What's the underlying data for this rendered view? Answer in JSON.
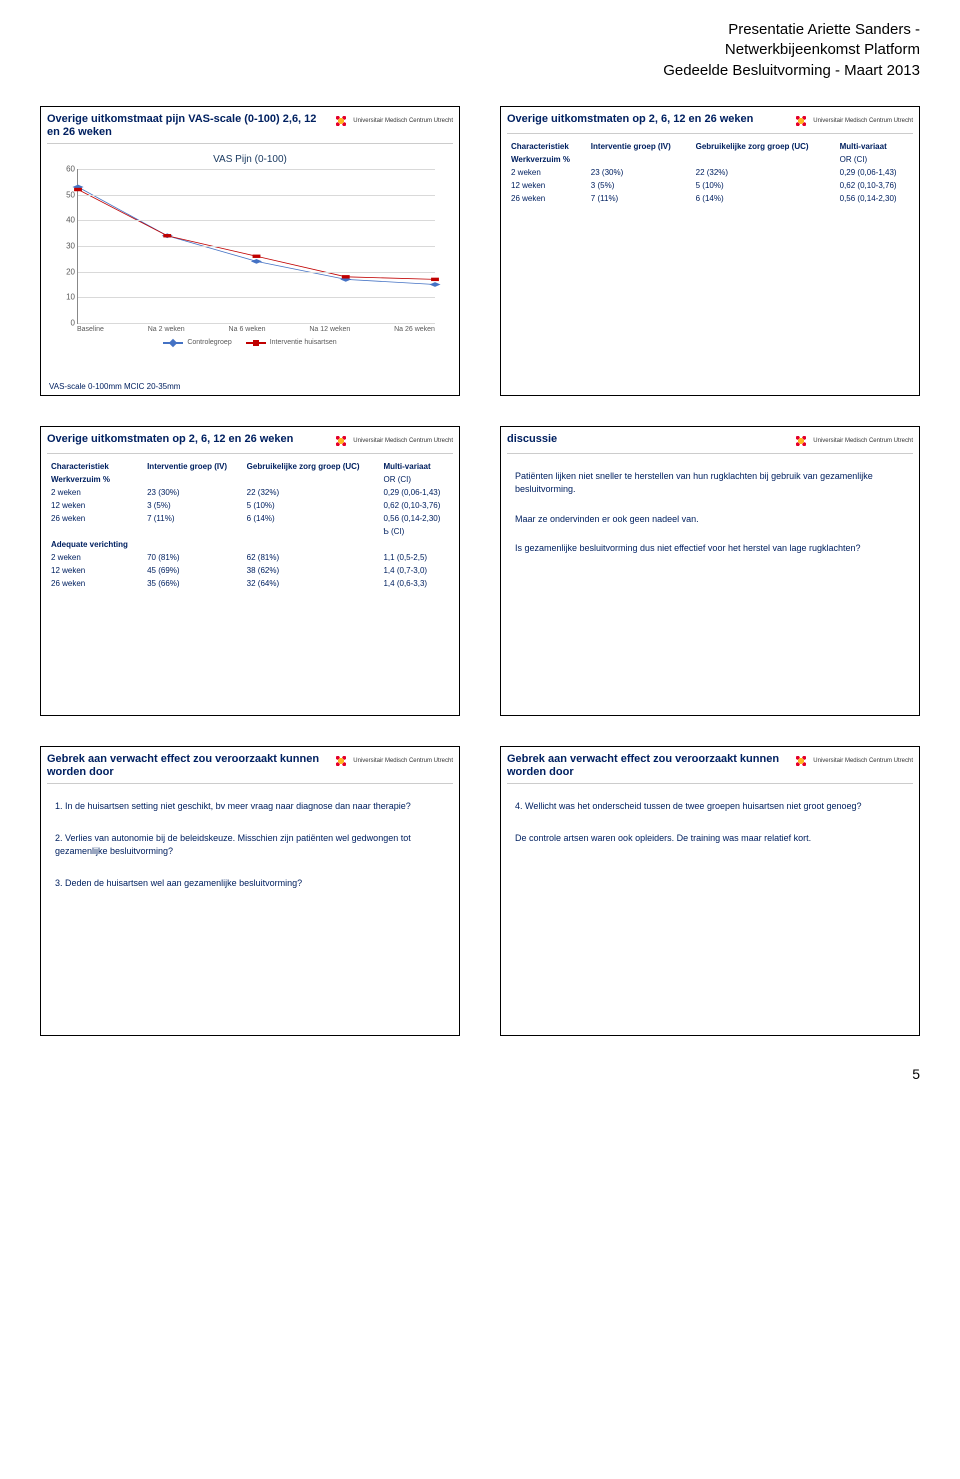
{
  "header": {
    "line1": "Presentatie Ariette Sanders -",
    "line2": "Netwerkbijeenkomst Platform",
    "line3": "Gedeelde Besluitvorming - Maart 2013"
  },
  "pageNumber": "5",
  "logoText": "Universitair Medisch Centrum Utrecht",
  "slides": {
    "s1": {
      "title": "Overige uitkomstmaat pijn VAS-scale (0-100) 2,6, 12 en 26 weken",
      "footnote": "VAS-scale 0-100mm MCIC 20-35mm",
      "chart": {
        "title": "VAS Pijn (0-100)",
        "ymin": 0,
        "ymax": 60,
        "ystep": 10,
        "xcats": [
          "Baseline",
          "Na 2 weken",
          "Na 6 weken",
          "Na 12 weken",
          "Na 26 weken"
        ],
        "series": [
          {
            "name": "Controlegroep",
            "color": "#4472c4",
            "marker": "diamond",
            "values": [
              53,
              34,
              24,
              17,
              15
            ]
          },
          {
            "name": "Interventie huisartsen",
            "color": "#c00000",
            "marker": "square",
            "values": [
              52,
              34,
              26,
              18,
              17
            ]
          }
        ],
        "grid_color": "#d9d9d9",
        "axis_color": "#888888",
        "background": "#ffffff"
      }
    },
    "s2": {
      "title": "Overige uitkomstmaten op 2, 6, 12 en 26 weken",
      "cols": [
        "Characteristiek",
        "Interventie groep (IV)",
        "Gebruikelijke zorg groep (UC)",
        "Multi-variaat"
      ],
      "section": "Werkverzuim %",
      "or": "OR (CI)",
      "rows": [
        [
          "2 weken",
          "23 (30%)",
          "22 (32%)",
          "0,29 (0,06-1,43)"
        ],
        [
          "12 weken",
          "3 (5%)",
          "5 (10%)",
          "0,62 (0,10-3,76)"
        ],
        [
          "26 weken",
          "7 (11%)",
          "6 (14%)",
          "0,56 (0,14-2,30)"
        ]
      ]
    },
    "s3": {
      "title": "Overige uitkomstmaten op 2, 6, 12 en 26 weken",
      "cols": [
        "Characteristiek",
        "Interventie groep (IV)",
        "Gebruikelijke zorg groep (UC)",
        "Multi-variaat"
      ],
      "section1": "Werkverzuim %",
      "or": "OR (CI)",
      "rows1": [
        [
          "2 weken",
          "23 (30%)",
          "22 (32%)",
          "0,29 (0,06-1,43)"
        ],
        [
          "12 weken",
          "3 (5%)",
          "5 (10%)",
          "0,62 (0,10-3,76)"
        ],
        [
          "26 weken",
          "7 (11%)",
          "6 (14%)",
          "0,56 (0,14-2,30)"
        ]
      ],
      "bci": "Ƅ (CI)",
      "section2": "Adequate verichting",
      "rows2": [
        [
          "2 weken",
          "70 (81%)",
          "62 (81%)",
          "1,1 (0,5-2,5)"
        ],
        [
          "12 weken",
          "45 (69%)",
          "38 (62%)",
          "1,4 (0,7-3,0)"
        ],
        [
          "26 weken",
          "35 (66%)",
          "32 (64%)",
          "1,4 (0,6-3,3)"
        ]
      ]
    },
    "s4": {
      "title": "discussie",
      "p1": "Patiënten lijken niet sneller te herstellen van hun rugklachten bij gebruik van gezamenlijke besluitvorming.",
      "p2": "Maar ze ondervinden er ook geen nadeel van.",
      "p3": "Is gezamenlijke besluitvorming dus niet effectief voor het herstel van lage rugklachten?"
    },
    "s5": {
      "title": "Gebrek aan verwacht effect zou veroorzaakt kunnen worden door",
      "q1": "1.  In de huisartsen setting niet geschikt, bv meer vraag naar diagnose dan naar therapie?",
      "q2": "2.  Verlies van autonomie bij de beleidskeuze. Misschien zijn patiënten wel gedwongen tot gezamenlijke besluitvorming?",
      "q3": "3.  Deden de huisartsen wel aan gezamenlijke besluitvorming?"
    },
    "s6": {
      "title": "Gebrek aan verwacht effect zou veroorzaakt kunnen worden door",
      "q1": "4.   Wellicht was het onderscheid tussen de twee groepen huisartsen niet groot genoeg?",
      "q2": "De controle artsen waren ook opleiders. De training was maar relatief kort."
    }
  }
}
